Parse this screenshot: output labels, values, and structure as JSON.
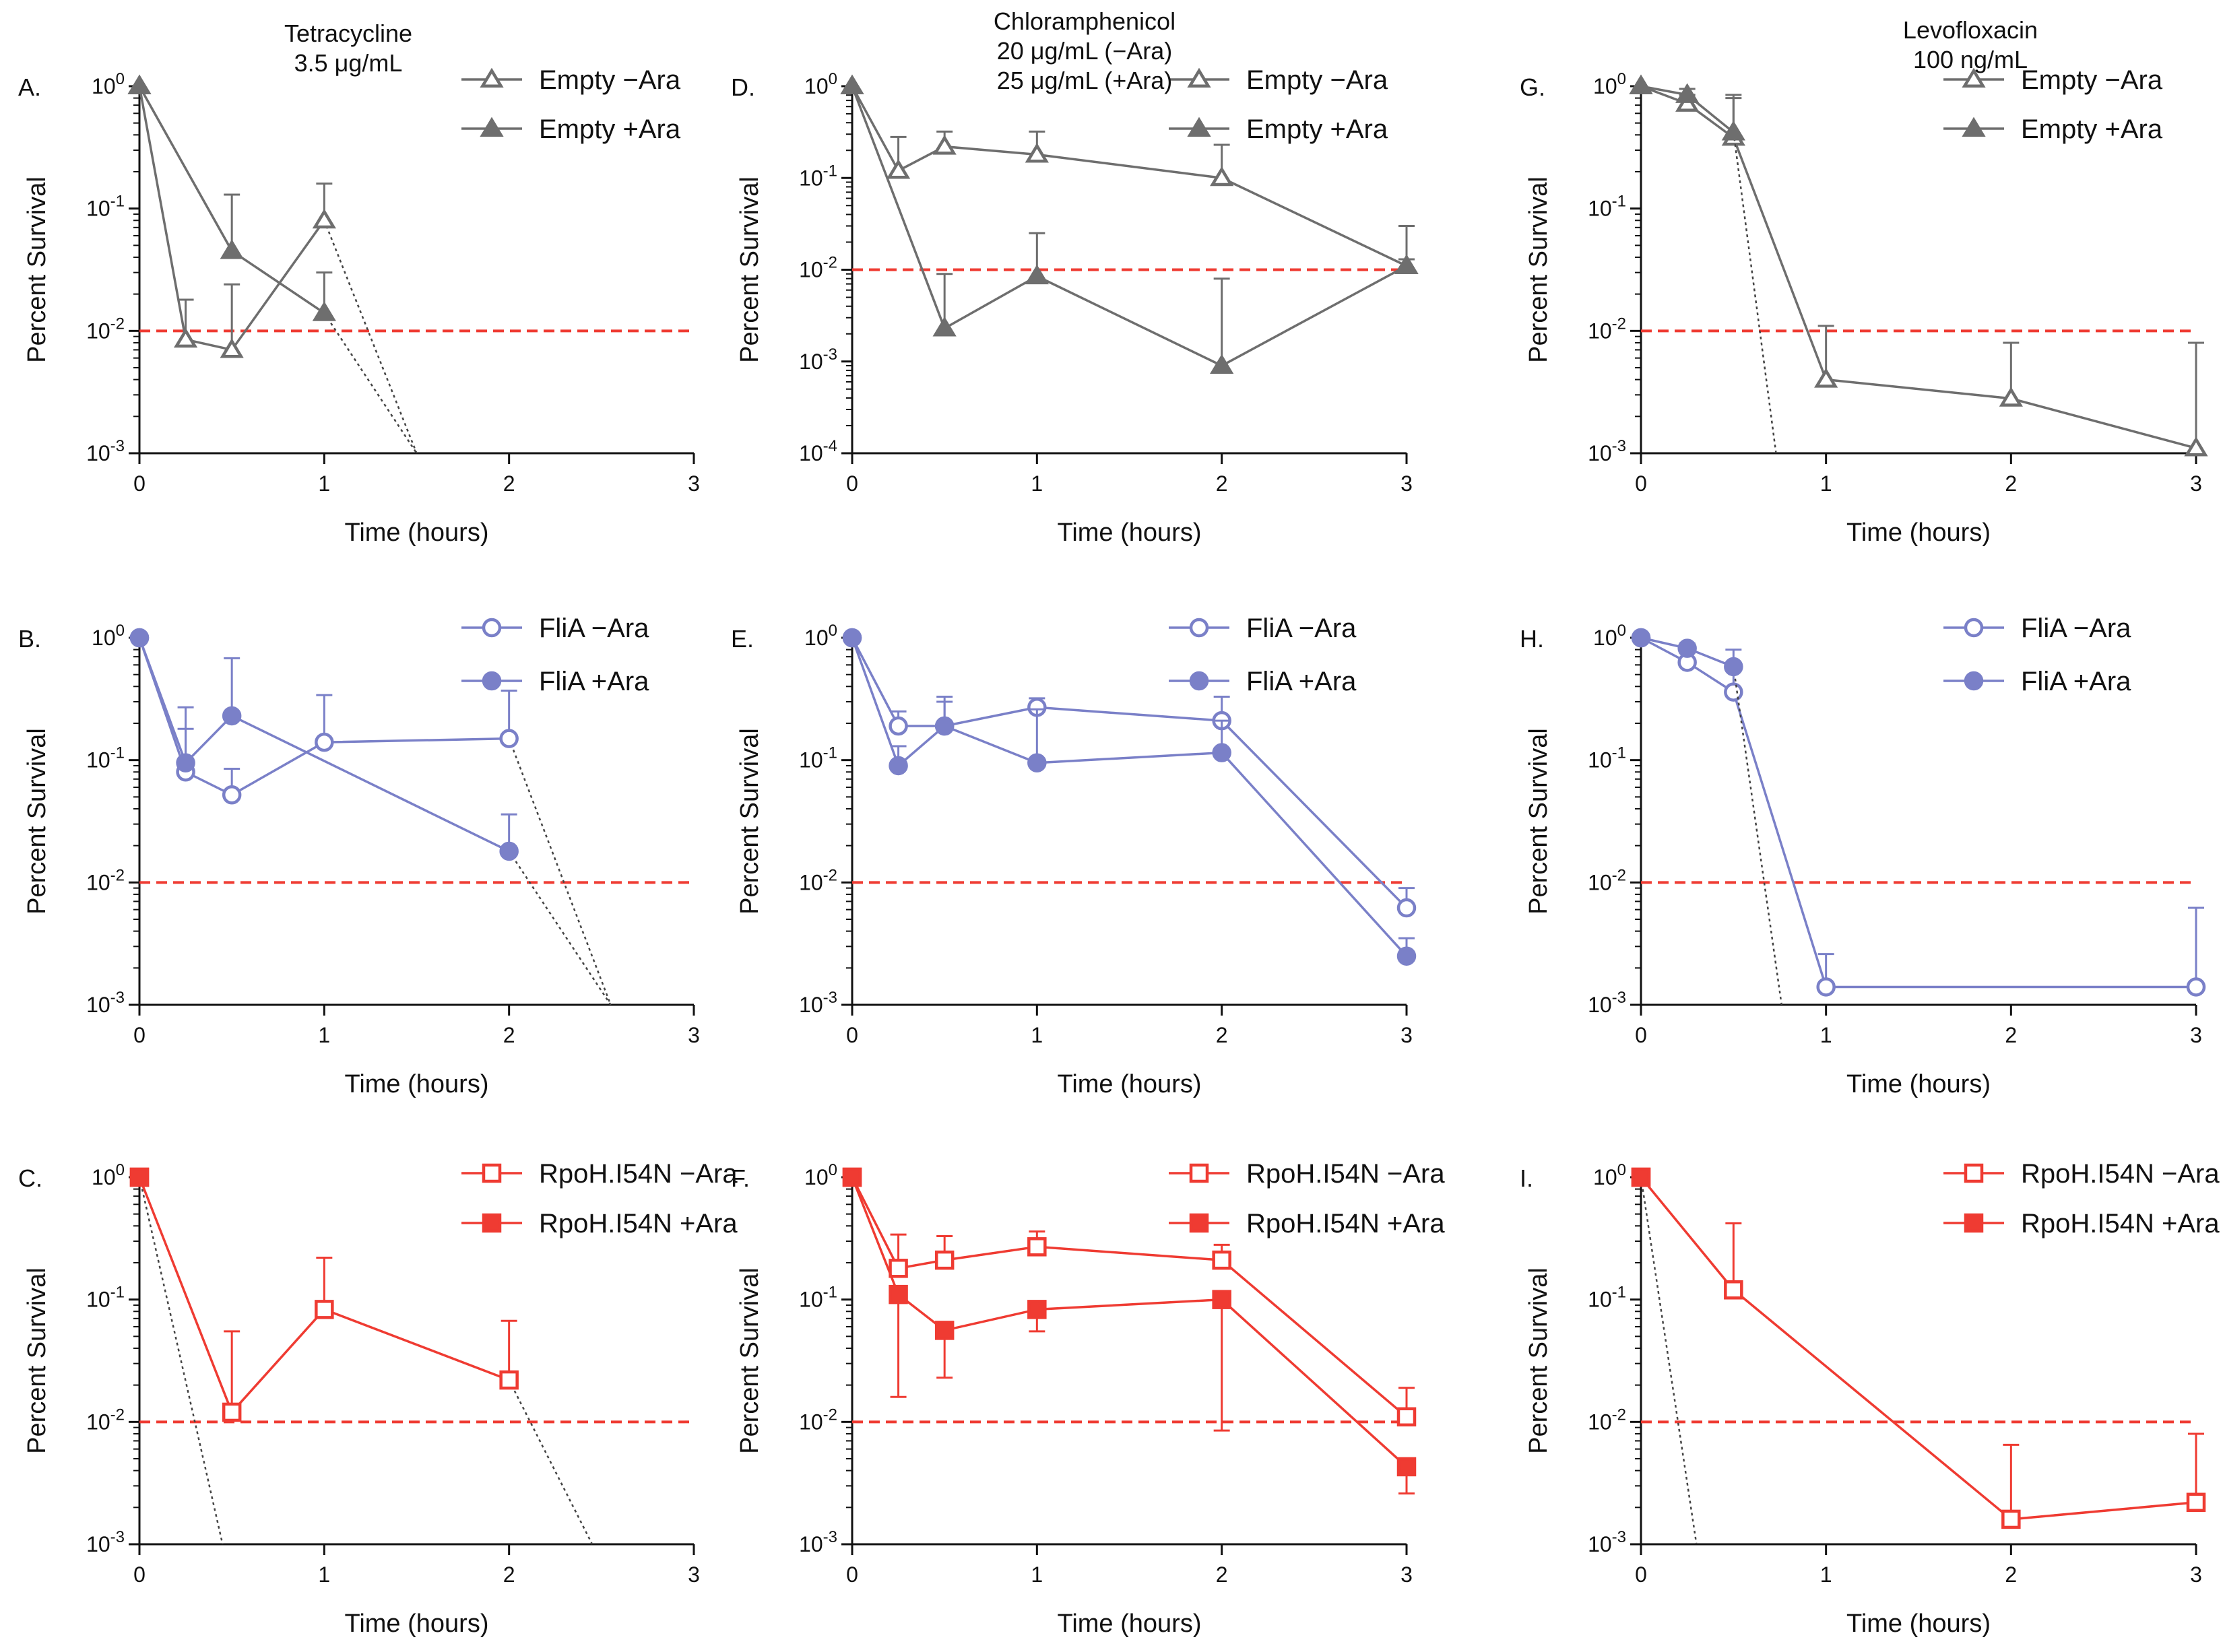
{
  "figure": {
    "column_titles": [
      {
        "id": "col-0",
        "lines": [
          "Tetracycline",
          "3.5 μg/mL"
        ]
      },
      {
        "id": "col-1",
        "lines": [
          "Chloramphenicol",
          "20 μg/mL (−Ara)",
          "25 μg/mL (+Ara)"
        ]
      },
      {
        "id": "col-2",
        "lines": [
          "Levofloxacin",
          "100 ng/mL"
        ]
      }
    ],
    "colors": {
      "empty": "#6e6e6e",
      "flia": "#7a80c8",
      "rpoh": "#ef3b32",
      "threshold": "#ef3b32",
      "extrapolation": "#444444",
      "axis": "#111111"
    },
    "legend_sets": {
      "empty": [
        "Empty −Ara",
        "Empty +Ara"
      ],
      "empty_lev": [
        "Empty  −Ara",
        "Empty +Ara"
      ],
      "flia": [
        "FliA −Ara",
        "FliA +Ara"
      ],
      "rpoh": [
        "RpoH.I54N −Ara",
        "RpoH.I54N +Ara"
      ]
    }
  },
  "chart_data": [
    {
      "panel": "A.",
      "type": "line",
      "y_scale": "log",
      "xlabel": "Time (hours)",
      "ylabel": "Percent Survival",
      "xlim": [
        0,
        3
      ],
      "xticks": [
        "0",
        "1",
        "2",
        "3"
      ],
      "ylim_exp": [
        -3,
        0
      ],
      "yticks": [
        "0",
        "-1",
        "-2",
        "-3"
      ],
      "threshold": 0.01,
      "color": "empty",
      "marker": "triangle",
      "series": [
        {
          "name": "Empty −Ara",
          "filled": false,
          "x": [
            0,
            0.25,
            0.5,
            1
          ],
          "y": [
            1,
            0.0085,
            0.007,
            0.08
          ],
          "err": [
            null,
            0.018,
            0.024,
            0.16
          ],
          "extrapolation": [
            [
              1,
              0.08
            ],
            [
              1.5,
              0.001
            ]
          ]
        },
        {
          "name": "Empty +Ara",
          "filled": true,
          "x": [
            0,
            0.5,
            1
          ],
          "y": [
            1,
            0.045,
            0.014
          ],
          "err": [
            null,
            0.13,
            0.03
          ],
          "extrapolation": [
            [
              1,
              0.014
            ],
            [
              1.5,
              0.001
            ]
          ]
        }
      ]
    },
    {
      "panel": "D.",
      "type": "line",
      "y_scale": "log",
      "xlabel": "Time (hours)",
      "ylabel": "Percent Survival",
      "xlim": [
        0,
        3
      ],
      "xticks": [
        "0",
        "1",
        "2",
        "3"
      ],
      "ylim_exp": [
        -4,
        0
      ],
      "yticks": [
        "0",
        "-1",
        "-2",
        "-3",
        "-4"
      ],
      "threshold": 0.01,
      "color": "empty",
      "marker": "triangle",
      "series": [
        {
          "name": "Empty −Ara",
          "filled": false,
          "x": [
            0,
            0.25,
            0.5,
            1,
            2,
            3
          ],
          "y": [
            1,
            0.12,
            0.22,
            0.18,
            0.1,
            0.011
          ],
          "err": [
            null,
            0.28,
            0.32,
            0.32,
            0.23,
            0.03
          ]
        },
        {
          "name": "Empty +Ara",
          "filled": true,
          "x": [
            0,
            0.5,
            1,
            2,
            3
          ],
          "y": [
            1,
            0.0023,
            0.0085,
            0.0009,
            0.011
          ],
          "err": [
            null,
            0.009,
            0.025,
            0.008,
            0.013
          ]
        }
      ]
    },
    {
      "panel": "G.",
      "type": "line",
      "y_scale": "log",
      "xlabel": "Time (hours)",
      "ylabel": "Percent Survival",
      "xlim": [
        0,
        3
      ],
      "xticks": [
        "0",
        "1",
        "2",
        "3"
      ],
      "ylim_exp": [
        -3,
        0
      ],
      "yticks": [
        "0",
        "-1",
        "-2",
        "-3"
      ],
      "threshold": 0.01,
      "color": "empty",
      "marker": "triangle",
      "series": [
        {
          "name": "Empty  −Ara",
          "filled": false,
          "x": [
            0,
            0.25,
            0.5,
            1,
            2,
            3
          ],
          "y": [
            1,
            0.72,
            0.38,
            0.004,
            0.0028,
            0.0011
          ],
          "err": [
            null,
            0.85,
            0.8,
            0.011,
            0.008,
            0.008
          ]
        },
        {
          "name": "Empty +Ara",
          "filled": true,
          "x": [
            0,
            0.25,
            0.5
          ],
          "y": [
            1,
            0.85,
            0.42
          ],
          "err": [
            null,
            0.95,
            0.85
          ],
          "extrapolation": [
            [
              0.5,
              0.42
            ],
            [
              0.73,
              0.001
            ]
          ]
        }
      ]
    },
    {
      "panel": "B.",
      "type": "line",
      "y_scale": "log",
      "xlabel": "Time (hours)",
      "ylabel": "Percent Survival",
      "xlim": [
        0,
        3
      ],
      "xticks": [
        "0",
        "1",
        "2",
        "3"
      ],
      "ylim_exp": [
        -3,
        0
      ],
      "yticks": [
        "0",
        "-1",
        "-2",
        "-3"
      ],
      "threshold": 0.01,
      "color": "flia",
      "marker": "circle",
      "series": [
        {
          "name": "FliA −Ara",
          "filled": false,
          "x": [
            0,
            0.25,
            0.5,
            1,
            2
          ],
          "y": [
            1,
            0.08,
            0.052,
            0.14,
            0.15
          ],
          "err": [
            null,
            0.18,
            0.085,
            0.34,
            0.37
          ],
          "extrapolation": [
            [
              2,
              0.15
            ],
            [
              2.55,
              0.001
            ]
          ]
        },
        {
          "name": "FliA +Ara",
          "filled": true,
          "x": [
            0,
            0.25,
            0.5,
            2
          ],
          "y": [
            1,
            0.095,
            0.23,
            0.018
          ],
          "err": [
            null,
            0.27,
            0.68,
            0.036
          ],
          "extrapolation": [
            [
              2,
              0.018
            ],
            [
              2.55,
              0.001
            ]
          ]
        }
      ]
    },
    {
      "panel": "E.",
      "type": "line",
      "y_scale": "log",
      "xlabel": "Time (hours)",
      "ylabel": "Percent Survival",
      "xlim": [
        0,
        3
      ],
      "xticks": [
        "0",
        "1",
        "2",
        "3"
      ],
      "ylim_exp": [
        -3,
        0
      ],
      "yticks": [
        "0",
        "-1",
        "-2",
        "-3"
      ],
      "threshold": 0.01,
      "color": "flia",
      "marker": "circle",
      "series": [
        {
          "name": "FliA −Ara",
          "filled": false,
          "x": [
            0,
            0.25,
            0.5,
            1,
            2,
            3
          ],
          "y": [
            1,
            0.19,
            0.19,
            0.27,
            0.21,
            0.0062
          ],
          "err": [
            null,
            0.25,
            0.3,
            0.32,
            0.33,
            0.009
          ]
        },
        {
          "name": "FliA +Ara",
          "filled": true,
          "x": [
            0,
            0.25,
            0.5,
            1,
            2,
            3
          ],
          "y": [
            1,
            0.09,
            0.19,
            0.095,
            0.115,
            0.0025
          ],
          "err": [
            null,
            0.13,
            0.33,
            0.26,
            0.21,
            0.0035
          ]
        }
      ]
    },
    {
      "panel": "H.",
      "type": "line",
      "y_scale": "log",
      "xlabel": "Time (hours)",
      "ylabel": "Percent Survival",
      "xlim": [
        0,
        3
      ],
      "xticks": [
        "0",
        "1",
        "2",
        "3"
      ],
      "ylim_exp": [
        -3,
        0
      ],
      "yticks": [
        "0",
        "-1",
        "-2",
        "-3"
      ],
      "threshold": 0.01,
      "color": "flia",
      "marker": "circle",
      "series": [
        {
          "name": "FliA −Ara",
          "filled": false,
          "x": [
            0,
            0.25,
            0.5,
            1,
            3
          ],
          "y": [
            1,
            0.63,
            0.36,
            0.0014,
            0.0014
          ],
          "err": [
            null,
            0.75,
            0.6,
            0.0026,
            0.0062
          ]
        },
        {
          "name": "FliA +Ara",
          "filled": true,
          "x": [
            0,
            0.25,
            0.5
          ],
          "y": [
            1,
            0.82,
            0.58
          ],
          "err": [
            null,
            0.9,
            0.8
          ],
          "extrapolation": [
            [
              0.5,
              0.58
            ],
            [
              0.76,
              0.001
            ]
          ]
        }
      ]
    },
    {
      "panel": "C.",
      "type": "line",
      "y_scale": "log",
      "xlabel": "Time (hours)",
      "ylabel": "Percent Survival",
      "xlim": [
        0,
        3
      ],
      "xticks": [
        "0",
        "1",
        "2",
        "3"
      ],
      "ylim_exp": [
        -3,
        0
      ],
      "yticks": [
        "0",
        "-1",
        "-2",
        "-3"
      ],
      "threshold": 0.01,
      "color": "rpoh",
      "marker": "square",
      "series": [
        {
          "name": "RpoH.I54N −Ara",
          "filled": false,
          "x": [
            0,
            0.5,
            1,
            2
          ],
          "y": [
            1,
            0.012,
            0.083,
            0.022
          ],
          "err": [
            null,
            0.055,
            0.22,
            0.067
          ],
          "extrapolation": [
            [
              2,
              0.022
            ],
            [
              2.45,
              0.001
            ]
          ]
        },
        {
          "name": "RpoH.I54N +Ara",
          "filled": true,
          "x": [
            0
          ],
          "y": [
            1
          ],
          "err": [
            null
          ],
          "extrapolation": [
            [
              0,
              1
            ],
            [
              0.45,
              0.001
            ]
          ]
        }
      ]
    },
    {
      "panel": "F.",
      "type": "line",
      "y_scale": "log",
      "xlabel": "Time (hours)",
      "ylabel": "Percent Survival",
      "xlim": [
        0,
        3
      ],
      "xticks": [
        "0",
        "1",
        "2",
        "3"
      ],
      "ylim_exp": [
        -3,
        0
      ],
      "yticks": [
        "0",
        "-1",
        "-2",
        "-3"
      ],
      "threshold": 0.01,
      "color": "rpoh",
      "marker": "square",
      "series": [
        {
          "name": "RpoH.I54N −Ara",
          "filled": false,
          "x": [
            0,
            0.25,
            0.5,
            1,
            2,
            3
          ],
          "y": [
            1,
            0.18,
            0.21,
            0.27,
            0.21,
            0.011
          ],
          "err": [
            null,
            0.34,
            0.33,
            0.36,
            0.28,
            0.019
          ]
        },
        {
          "name": "RpoH.I54N +Ara",
          "filled": true,
          "x": [
            0,
            0.25,
            0.5,
            1,
            2,
            3
          ],
          "y": [
            1,
            0.11,
            0.056,
            0.083,
            0.1,
            0.0043
          ],
          "err": [
            null,
            0.016,
            0.023,
            0.055,
            0.0085,
            0.0026
          ]
        }
      ]
    },
    {
      "panel": "I.",
      "type": "line",
      "y_scale": "log",
      "xlabel": "Time (hours)",
      "ylabel": "Percent Survival",
      "xlim": [
        0,
        3
      ],
      "xticks": [
        "0",
        "1",
        "2",
        "3"
      ],
      "ylim_exp": [
        -3,
        0
      ],
      "yticks": [
        "0",
        "-1",
        "-2",
        "-3"
      ],
      "threshold": 0.01,
      "color": "rpoh",
      "marker": "square",
      "series": [
        {
          "name": "RpoH.I54N −Ara",
          "filled": false,
          "x": [
            0,
            0.5,
            2,
            3
          ],
          "y": [
            1,
            0.12,
            0.0016,
            0.0022
          ],
          "err": [
            null,
            0.42,
            0.0065,
            0.008
          ]
        },
        {
          "name": "RpoH.I54N +Ara",
          "filled": true,
          "x": [
            0
          ],
          "y": [
            1
          ],
          "err": [
            null
          ],
          "extrapolation": [
            [
              0,
              1
            ],
            [
              0.3,
              0.001
            ]
          ]
        }
      ]
    }
  ]
}
